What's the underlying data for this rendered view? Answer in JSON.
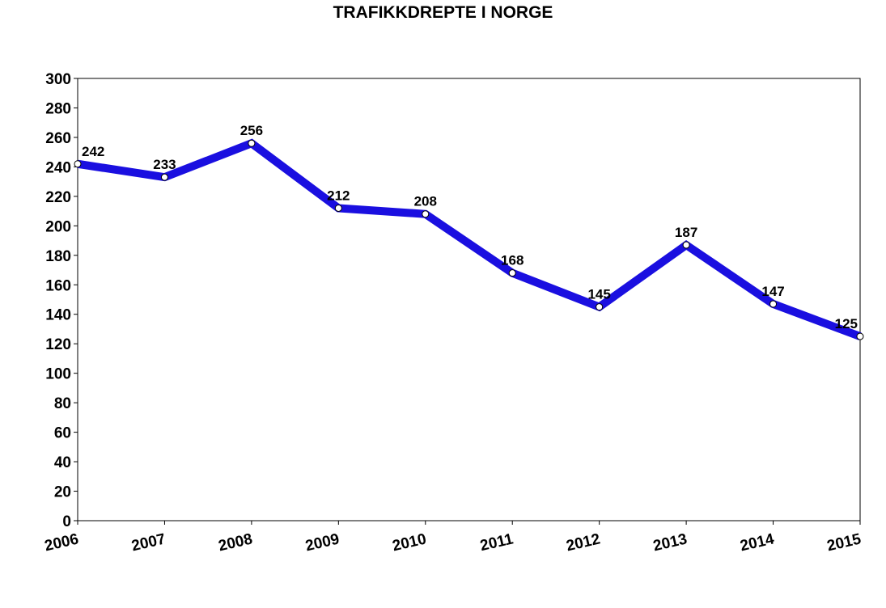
{
  "chart_data": {
    "type": "line",
    "title": "TRAFIKKDREPTE I NORGE",
    "xlabel": "",
    "ylabel": "",
    "categories": [
      "2006",
      "2007",
      "2008",
      "2009",
      "2010",
      "2011",
      "2012",
      "2013",
      "2014",
      "2015"
    ],
    "series": [
      {
        "values": [
          242,
          233,
          256,
          212,
          208,
          168,
          145,
          187,
          147,
          125
        ]
      }
    ],
    "ylim": [
      0,
      300
    ],
    "yticks": [
      0,
      20,
      40,
      60,
      80,
      100,
      120,
      140,
      160,
      180,
      200,
      220,
      240,
      260,
      280,
      300
    ],
    "grid": false,
    "legend": "none",
    "line_color": "#1a0fe0",
    "marker_fill": "#ffffff",
    "data_labels": true
  }
}
